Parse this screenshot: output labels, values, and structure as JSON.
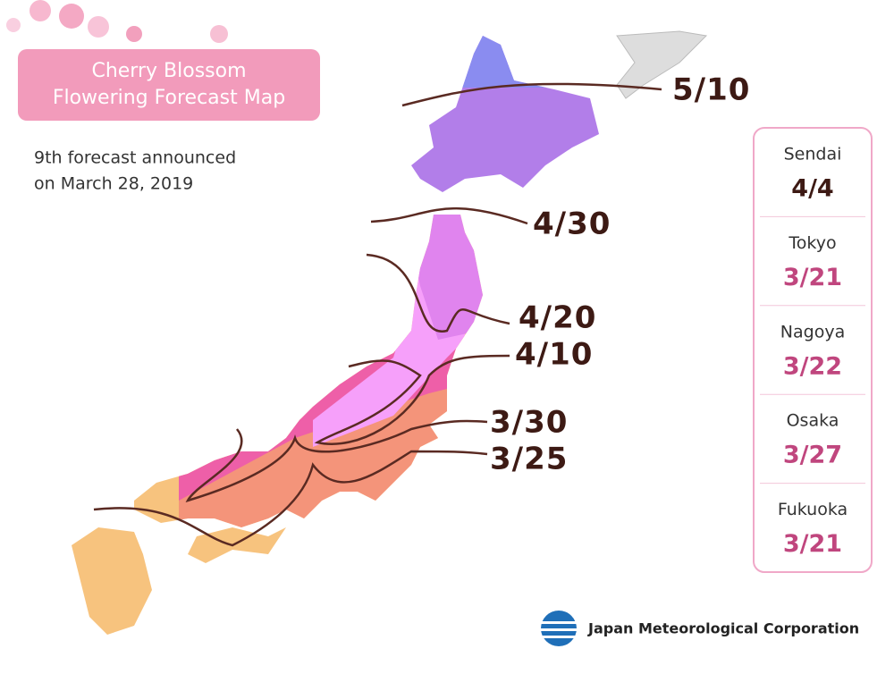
{
  "header": {
    "title_lines": [
      "Cherry Blossom",
      "Flowering Forecast Map"
    ],
    "subtitle_lines": [
      "9th forecast announced",
      "on March 28, 2019"
    ]
  },
  "isolines": [
    {
      "label": "5/10"
    },
    {
      "label": "4/30"
    },
    {
      "label": "4/20"
    },
    {
      "label": "4/10"
    },
    {
      "label": "3/30"
    },
    {
      "label": "3/25"
    }
  ],
  "cities": [
    {
      "name": "Sendai",
      "date": "4/4",
      "color": "#3d1a14"
    },
    {
      "name": "Tokyo",
      "date": "3/21",
      "color": "#c0467e"
    },
    {
      "name": "Nagoya",
      "date": "3/22",
      "color": "#c0467e"
    },
    {
      "name": "Osaka",
      "date": "3/27",
      "color": "#c0467e"
    },
    {
      "name": "Fukuoka",
      "date": "3/21",
      "color": "#c0467e"
    }
  ],
  "footer": {
    "organization": "Japan Meteorological Corporation"
  }
}
